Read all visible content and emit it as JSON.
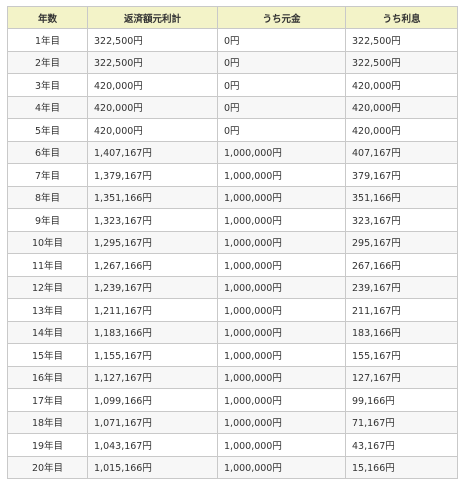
{
  "table": {
    "headers": [
      "年数",
      "返済額元利計",
      "うち元金",
      "うち利息"
    ],
    "rows": [
      [
        "1年目",
        "322,500円",
        "0円",
        "322,500円"
      ],
      [
        "2年目",
        "322,500円",
        "0円",
        "322,500円"
      ],
      [
        "3年目",
        "420,000円",
        "0円",
        "420,000円"
      ],
      [
        "4年目",
        "420,000円",
        "0円",
        "420,000円"
      ],
      [
        "5年目",
        "420,000円",
        "0円",
        "420,000円"
      ],
      [
        "6年目",
        "1,407,167円",
        "1,000,000円",
        "407,167円"
      ],
      [
        "7年目",
        "1,379,167円",
        "1,000,000円",
        "379,167円"
      ],
      [
        "8年目",
        "1,351,166円",
        "1,000,000円",
        "351,166円"
      ],
      [
        "9年目",
        "1,323,167円",
        "1,000,000円",
        "323,167円"
      ],
      [
        "10年目",
        "1,295,167円",
        "1,000,000円",
        "295,167円"
      ],
      [
        "11年目",
        "1,267,166円",
        "1,000,000円",
        "267,166円"
      ],
      [
        "12年目",
        "1,239,167円",
        "1,000,000円",
        "239,167円"
      ],
      [
        "13年目",
        "1,211,167円",
        "1,000,000円",
        "211,167円"
      ],
      [
        "14年目",
        "1,183,166円",
        "1,000,000円",
        "183,166円"
      ],
      [
        "15年目",
        "1,155,167円",
        "1,000,000円",
        "155,167円"
      ],
      [
        "16年目",
        "1,127,167円",
        "1,000,000円",
        "127,167円"
      ],
      [
        "17年目",
        "1,099,166円",
        "1,000,000円",
        "99,166円"
      ],
      [
        "18年目",
        "1,071,167円",
        "1,000,000円",
        "71,167円"
      ],
      [
        "19年目",
        "1,043,167円",
        "1,000,000円",
        "43,167円"
      ],
      [
        "20年目",
        "1,015,166円",
        "1,000,000円",
        "15,166円"
      ]
    ]
  },
  "colors": {
    "header_bg": "#f3f3c8",
    "border": "#c9c9c9",
    "stripe": "#f7f7f7"
  }
}
